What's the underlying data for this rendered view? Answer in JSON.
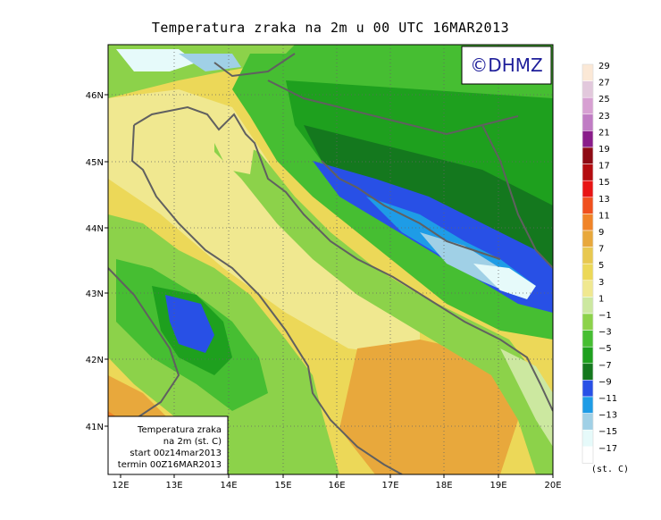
{
  "title": "Temperatura zraka na 2m u 00 UTC 16MAR2013",
  "logo": "©DHMZ",
  "lat_labels": [
    "46N",
    "45N",
    "44N",
    "43N",
    "42N",
    "41N"
  ],
  "lon_labels": [
    "12E",
    "13E",
    "14E",
    "15E",
    "16E",
    "17E",
    "18E",
    "19E",
    "20E"
  ],
  "legend": {
    "unit": "(st. C)",
    "labels": [
      "29",
      "27",
      "25",
      "23",
      "21",
      "19",
      "17",
      "15",
      "13",
      "11",
      "9",
      "7",
      "5",
      "3",
      "1",
      "−1",
      "−3",
      "−5",
      "−7",
      "−9",
      "−11",
      "−13",
      "−15",
      "−17"
    ],
    "colors": [
      "#fbe8d6",
      "#e2c8dc",
      "#d7a0d2",
      "#c07cc4",
      "#8a1c8a",
      "#8e0a14",
      "#b40c10",
      "#e81414",
      "#f0501e",
      "#f08428",
      "#e8a83c",
      "#e8c850",
      "#ecd858",
      "#f0e890",
      "#cce8a0",
      "#8cd24a",
      "#46be32",
      "#1ea01e",
      "#14781e",
      "#2850e6",
      "#1e9ce6",
      "#a0d0e6",
      "#e6fafa",
      "#ffffff"
    ]
  },
  "info_box": {
    "line1": "Temperatura zraka",
    "line2": "na 2m (st. C)",
    "line3": "start 00z14mar2013",
    "line4": "termin 00Z16MAR2013"
  }
}
